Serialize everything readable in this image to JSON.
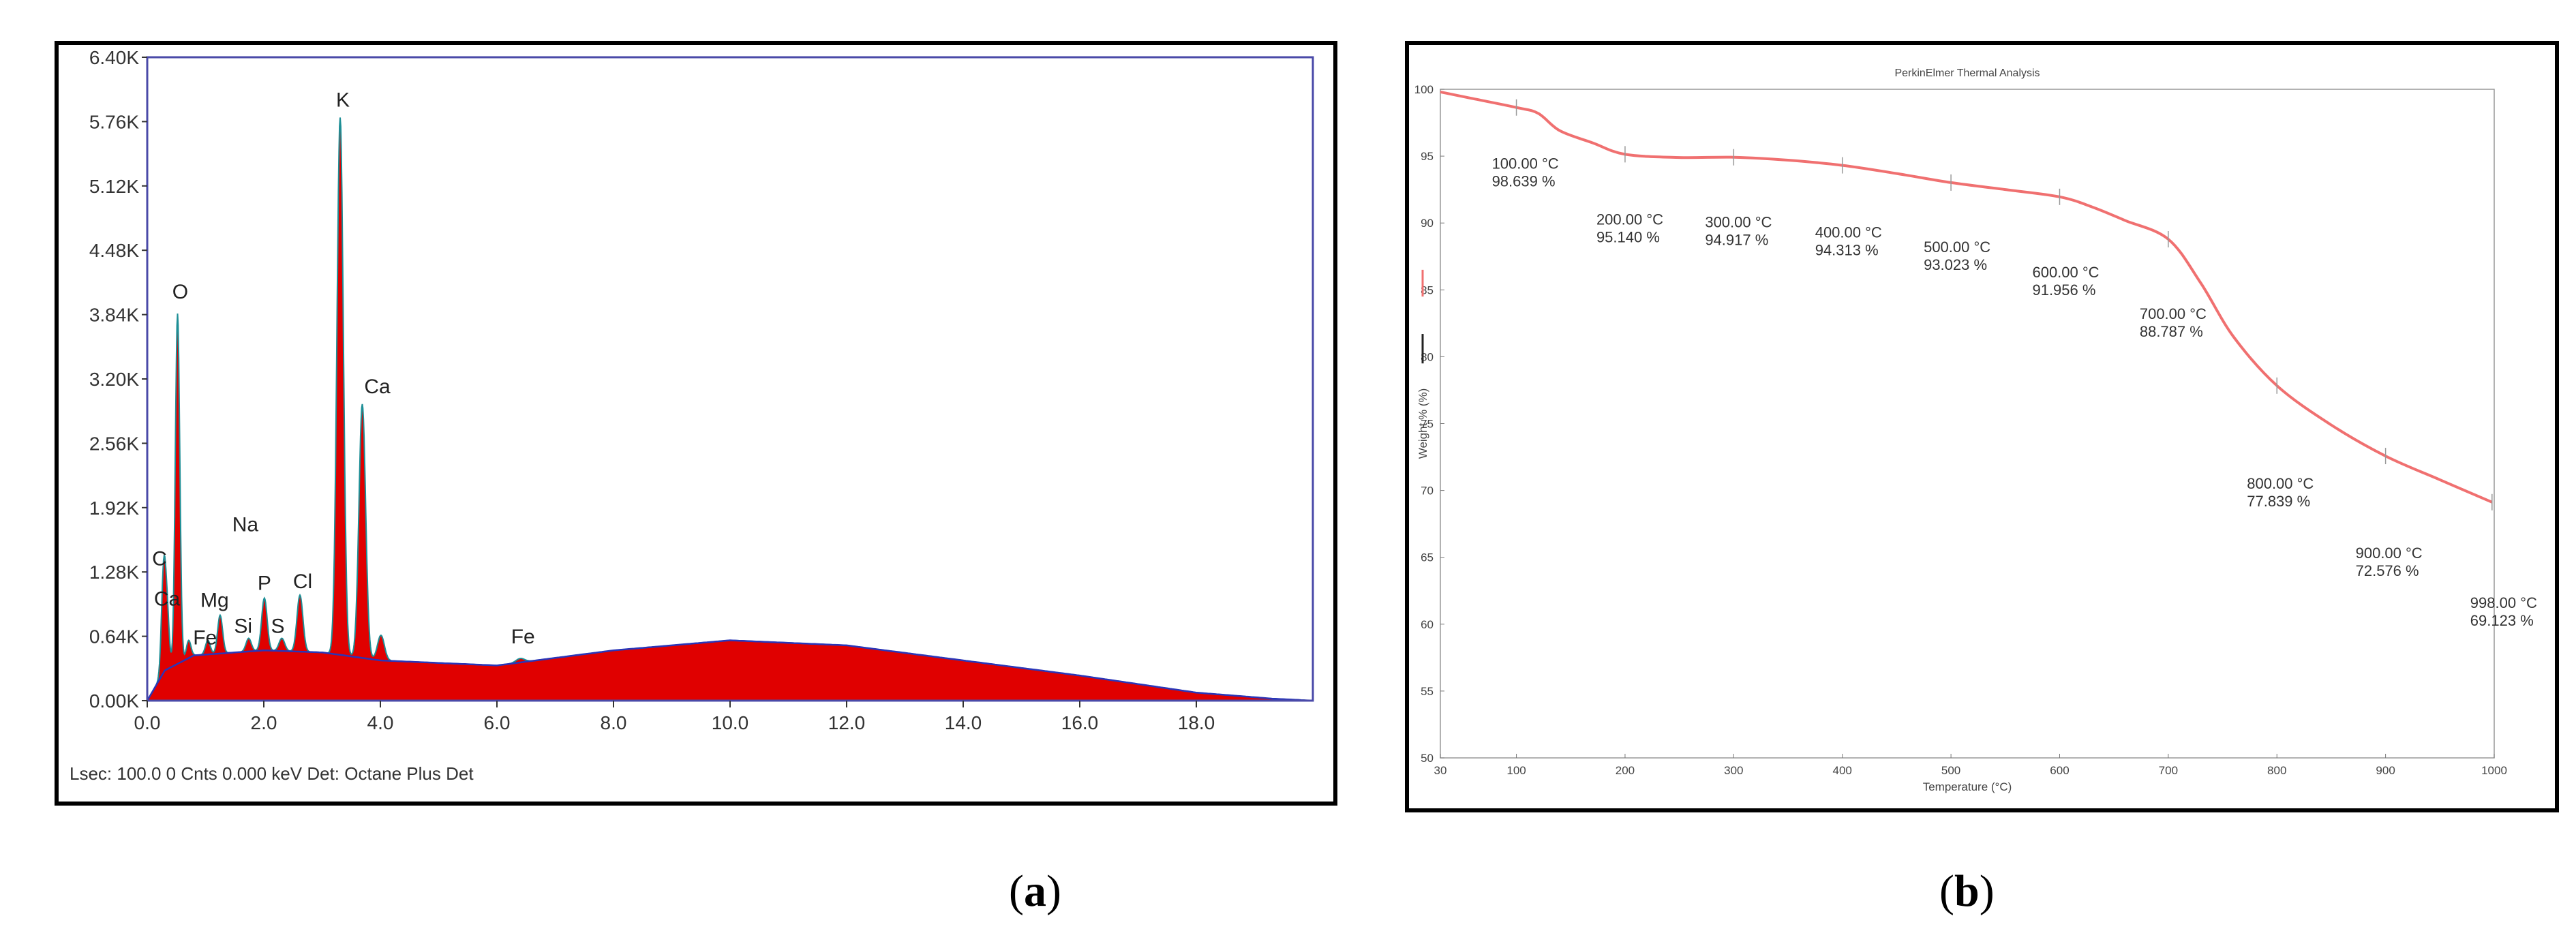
{
  "caption_a": {
    "open": "(",
    "letter": "a",
    "close": ")"
  },
  "caption_b": {
    "open": "(",
    "letter": "b",
    "close": ")"
  },
  "status_a": "Lsec: 100.0 0 Cnts  0.000 keV Det: Octane Plus Det",
  "chart_data": [
    {
      "type": "area",
      "xlim": [
        0,
        20
      ],
      "ylim": [
        0,
        6.4
      ],
      "x_ticks": [
        "0.0",
        "2.0",
        "4.0",
        "6.0",
        "8.0",
        "10.0",
        "12.0",
        "14.0",
        "16.0",
        "18.0"
      ],
      "x_tick_values": [
        0,
        2,
        4,
        6,
        8,
        10,
        12,
        14,
        16,
        18
      ],
      "y_ticks": [
        "0.00K",
        "0.64K",
        "1.28K",
        "1.92K",
        "2.56K",
        "3.20K",
        "3.84K",
        "4.48K",
        "5.12K",
        "5.76K",
        "6.40K"
      ],
      "y_tick_values": [
        0,
        0.64,
        1.28,
        1.92,
        2.56,
        3.2,
        3.84,
        4.48,
        5.12,
        5.76,
        6.4
      ],
      "background": [
        [
          0,
          0
        ],
        [
          0.3,
          0.3
        ],
        [
          0.8,
          0.45
        ],
        [
          2,
          0.5
        ],
        [
          3,
          0.48
        ],
        [
          4,
          0.4
        ],
        [
          6,
          0.35
        ],
        [
          8,
          0.5
        ],
        [
          10,
          0.6
        ],
        [
          12,
          0.55
        ],
        [
          14,
          0.4
        ],
        [
          16,
          0.25
        ],
        [
          18,
          0.08
        ],
        [
          19.3,
          0.02
        ],
        [
          20,
          0
        ]
      ],
      "peaks": [
        {
          "label": "C",
          "x": 0.28,
          "y": 1.25
        },
        {
          "label": "Ca",
          "x": 0.34,
          "y": 0.85
        },
        {
          "label": "O",
          "x": 0.52,
          "y": 3.85
        },
        {
          "label": "Fe",
          "x": 0.71,
          "y": 0.6
        },
        {
          "label": "Na",
          "x": 1.04,
          "y": 0.6
        },
        {
          "label": "Mg",
          "x": 1.25,
          "y": 0.85
        },
        {
          "label": "Si",
          "x": 1.74,
          "y": 0.62
        },
        {
          "label": "P",
          "x": 2.01,
          "y": 1.02
        },
        {
          "label": "S",
          "x": 2.31,
          "y": 0.62
        },
        {
          "label": "Cl",
          "x": 2.62,
          "y": 1.05
        },
        {
          "label": "K",
          "x": 3.31,
          "y": 5.8
        },
        {
          "label": "Ca",
          "x": 3.69,
          "y": 2.95
        },
        {
          "label": "",
          "x": 4.01,
          "y": 0.65
        },
        {
          "label": "Fe",
          "x": 6.4,
          "y": 0.42
        }
      ]
    },
    {
      "type": "line",
      "title": "PerkinElmer Thermal Analysis",
      "xlabel": "Temperature (°C)",
      "ylabel": "Weight % (%)",
      "xlim": [
        30,
        1000
      ],
      "ylim": [
        50,
        100
      ],
      "x_ticks": [
        "30",
        "100",
        "200",
        "300",
        "400",
        "500",
        "600",
        "700",
        "800",
        "900",
        "1000"
      ],
      "x_tick_values": [
        30,
        100,
        200,
        300,
        400,
        500,
        600,
        700,
        800,
        900,
        1000
      ],
      "y_ticks": [
        "50",
        "55",
        "60",
        "65",
        "70",
        "75",
        "80",
        "85",
        "90",
        "95",
        "100"
      ],
      "y_tick_values": [
        50,
        55,
        60,
        65,
        70,
        75,
        80,
        85,
        90,
        95,
        100
      ],
      "series": [
        {
          "color": "#f07070",
          "x": [
            30,
            60,
            100,
            120,
            140,
            170,
            200,
            250,
            300,
            350,
            400,
            450,
            500,
            550,
            600,
            630,
            660,
            700,
            730,
            760,
            800,
            850,
            900,
            950,
            998
          ],
          "y": [
            99.8,
            99.3,
            98.639,
            98.2,
            96.9,
            96.0,
            95.14,
            94.9,
            94.917,
            94.7,
            94.313,
            93.7,
            93.023,
            92.5,
            91.956,
            91.2,
            90.2,
            88.787,
            85.5,
            81.5,
            77.839,
            74.9,
            72.576,
            70.8,
            69.123
          ]
        }
      ],
      "annotations": [
        {
          "x": 100,
          "y": 98.639,
          "temp": "100.00 °C",
          "weight": "98.639 %"
        },
        {
          "x": 200,
          "y": 95.14,
          "temp": "200.00 °C",
          "weight": "95.140 %"
        },
        {
          "x": 300,
          "y": 94.917,
          "temp": "300.00 °C",
          "weight": "94.917 %"
        },
        {
          "x": 400,
          "y": 94.313,
          "temp": "400.00 °C",
          "weight": "94.313 %"
        },
        {
          "x": 500,
          "y": 93.023,
          "temp": "500.00 °C",
          "weight": "93.023 %"
        },
        {
          "x": 600,
          "y": 91.956,
          "temp": "600.00 °C",
          "weight": "91.956 %"
        },
        {
          "x": 700,
          "y": 88.787,
          "temp": "700.00 °C",
          "weight": "88.787 %"
        },
        {
          "x": 800,
          "y": 77.839,
          "temp": "800.00 °C",
          "weight": "77.839 %"
        },
        {
          "x": 900,
          "y": 72.576,
          "temp": "900.00 °C",
          "weight": "72.576 %"
        },
        {
          "x": 998,
          "y": 69.123,
          "temp": "998.00 °C",
          "weight": "69.123 %"
        }
      ],
      "legend": [
        "red-line",
        "black-line"
      ]
    }
  ]
}
